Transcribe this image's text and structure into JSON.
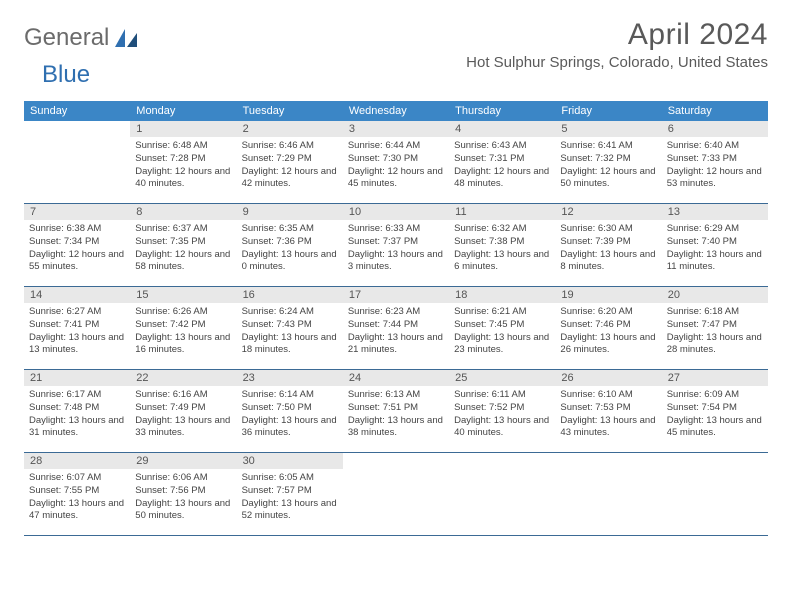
{
  "logo": {
    "part1": "General",
    "part2": "Blue"
  },
  "title": "April 2024",
  "location": "Hot Sulphur Springs, Colorado, United States",
  "colors": {
    "header_bg": "#3b86c6",
    "header_text": "#ffffff",
    "daynum_bg": "#e8e8e8",
    "row_border": "#3b6a95",
    "logo_gray": "#6b6b6b",
    "logo_blue": "#2f6fb0",
    "text": "#444444"
  },
  "typography": {
    "title_fontsize": 30,
    "location_fontsize": 15,
    "weekday_fontsize": 11,
    "daynum_fontsize": 11,
    "body_fontsize": 9.5
  },
  "weekdays": [
    "Sunday",
    "Monday",
    "Tuesday",
    "Wednesday",
    "Thursday",
    "Friday",
    "Saturday"
  ],
  "weeks": [
    [
      null,
      {
        "n": "1",
        "sr": "6:48 AM",
        "ss": "7:28 PM",
        "dl": "12 hours and 40 minutes."
      },
      {
        "n": "2",
        "sr": "6:46 AM",
        "ss": "7:29 PM",
        "dl": "12 hours and 42 minutes."
      },
      {
        "n": "3",
        "sr": "6:44 AM",
        "ss": "7:30 PM",
        "dl": "12 hours and 45 minutes."
      },
      {
        "n": "4",
        "sr": "6:43 AM",
        "ss": "7:31 PM",
        "dl": "12 hours and 48 minutes."
      },
      {
        "n": "5",
        "sr": "6:41 AM",
        "ss": "7:32 PM",
        "dl": "12 hours and 50 minutes."
      },
      {
        "n": "6",
        "sr": "6:40 AM",
        "ss": "7:33 PM",
        "dl": "12 hours and 53 minutes."
      }
    ],
    [
      {
        "n": "7",
        "sr": "6:38 AM",
        "ss": "7:34 PM",
        "dl": "12 hours and 55 minutes."
      },
      {
        "n": "8",
        "sr": "6:37 AM",
        "ss": "7:35 PM",
        "dl": "12 hours and 58 minutes."
      },
      {
        "n": "9",
        "sr": "6:35 AM",
        "ss": "7:36 PM",
        "dl": "13 hours and 0 minutes."
      },
      {
        "n": "10",
        "sr": "6:33 AM",
        "ss": "7:37 PM",
        "dl": "13 hours and 3 minutes."
      },
      {
        "n": "11",
        "sr": "6:32 AM",
        "ss": "7:38 PM",
        "dl": "13 hours and 6 minutes."
      },
      {
        "n": "12",
        "sr": "6:30 AM",
        "ss": "7:39 PM",
        "dl": "13 hours and 8 minutes."
      },
      {
        "n": "13",
        "sr": "6:29 AM",
        "ss": "7:40 PM",
        "dl": "13 hours and 11 minutes."
      }
    ],
    [
      {
        "n": "14",
        "sr": "6:27 AM",
        "ss": "7:41 PM",
        "dl": "13 hours and 13 minutes."
      },
      {
        "n": "15",
        "sr": "6:26 AM",
        "ss": "7:42 PM",
        "dl": "13 hours and 16 minutes."
      },
      {
        "n": "16",
        "sr": "6:24 AM",
        "ss": "7:43 PM",
        "dl": "13 hours and 18 minutes."
      },
      {
        "n": "17",
        "sr": "6:23 AM",
        "ss": "7:44 PM",
        "dl": "13 hours and 21 minutes."
      },
      {
        "n": "18",
        "sr": "6:21 AM",
        "ss": "7:45 PM",
        "dl": "13 hours and 23 minutes."
      },
      {
        "n": "19",
        "sr": "6:20 AM",
        "ss": "7:46 PM",
        "dl": "13 hours and 26 minutes."
      },
      {
        "n": "20",
        "sr": "6:18 AM",
        "ss": "7:47 PM",
        "dl": "13 hours and 28 minutes."
      }
    ],
    [
      {
        "n": "21",
        "sr": "6:17 AM",
        "ss": "7:48 PM",
        "dl": "13 hours and 31 minutes."
      },
      {
        "n": "22",
        "sr": "6:16 AM",
        "ss": "7:49 PM",
        "dl": "13 hours and 33 minutes."
      },
      {
        "n": "23",
        "sr": "6:14 AM",
        "ss": "7:50 PM",
        "dl": "13 hours and 36 minutes."
      },
      {
        "n": "24",
        "sr": "6:13 AM",
        "ss": "7:51 PM",
        "dl": "13 hours and 38 minutes."
      },
      {
        "n": "25",
        "sr": "6:11 AM",
        "ss": "7:52 PM",
        "dl": "13 hours and 40 minutes."
      },
      {
        "n": "26",
        "sr": "6:10 AM",
        "ss": "7:53 PM",
        "dl": "13 hours and 43 minutes."
      },
      {
        "n": "27",
        "sr": "6:09 AM",
        "ss": "7:54 PM",
        "dl": "13 hours and 45 minutes."
      }
    ],
    [
      {
        "n": "28",
        "sr": "6:07 AM",
        "ss": "7:55 PM",
        "dl": "13 hours and 47 minutes."
      },
      {
        "n": "29",
        "sr": "6:06 AM",
        "ss": "7:56 PM",
        "dl": "13 hours and 50 minutes."
      },
      {
        "n": "30",
        "sr": "6:05 AM",
        "ss": "7:57 PM",
        "dl": "13 hours and 52 minutes."
      },
      null,
      null,
      null,
      null
    ]
  ],
  "labels": {
    "sunrise_prefix": "Sunrise: ",
    "sunset_prefix": "Sunset: ",
    "daylight_prefix": "Daylight: "
  }
}
